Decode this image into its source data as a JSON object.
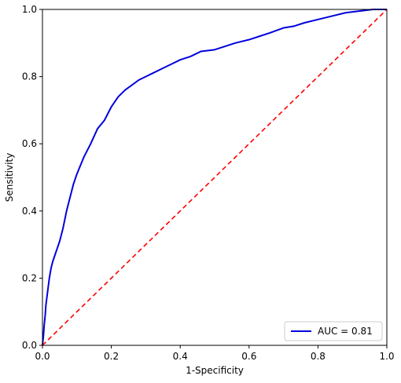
{
  "chart_data": {
    "type": "line",
    "title": "",
    "xlabel": "1-Specificity",
    "ylabel": "Sensitivity",
    "xlim": [
      0.0,
      1.0
    ],
    "ylim": [
      0.0,
      1.0
    ],
    "xticks": [
      "0.0",
      "0.2",
      "0.4",
      "0.6",
      "0.8",
      "1.0"
    ],
    "yticks": [
      "0.0",
      "0.2",
      "0.4",
      "0.6",
      "0.8",
      "1.0"
    ],
    "grid": false,
    "legend_position": "bottom-right",
    "series": [
      {
        "name": "AUC = 0.81",
        "color": "#0000dd",
        "style": "solid",
        "x": [
          0.0,
          0.003,
          0.005,
          0.008,
          0.01,
          0.015,
          0.02,
          0.025,
          0.03,
          0.04,
          0.05,
          0.06,
          0.07,
          0.08,
          0.09,
          0.1,
          0.12,
          0.14,
          0.16,
          0.18,
          0.2,
          0.22,
          0.24,
          0.26,
          0.28,
          0.3,
          0.32,
          0.35,
          0.38,
          0.4,
          0.43,
          0.46,
          0.5,
          0.53,
          0.56,
          0.6,
          0.63,
          0.66,
          0.7,
          0.73,
          0.76,
          0.8,
          0.84,
          0.88,
          0.92,
          0.96,
          1.0
        ],
        "y": [
          0.0,
          0.03,
          0.06,
          0.09,
          0.12,
          0.16,
          0.2,
          0.23,
          0.25,
          0.28,
          0.31,
          0.35,
          0.4,
          0.44,
          0.48,
          0.51,
          0.56,
          0.6,
          0.645,
          0.67,
          0.71,
          0.74,
          0.76,
          0.775,
          0.79,
          0.8,
          0.81,
          0.825,
          0.84,
          0.85,
          0.86,
          0.875,
          0.88,
          0.89,
          0.9,
          0.91,
          0.92,
          0.93,
          0.945,
          0.95,
          0.96,
          0.97,
          0.98,
          0.99,
          0.995,
          1.0,
          1.0
        ]
      },
      {
        "name": "",
        "color": "#ff0000",
        "style": "dashed",
        "x": [
          0.0,
          1.0
        ],
        "y": [
          0.0,
          1.0
        ]
      }
    ]
  }
}
